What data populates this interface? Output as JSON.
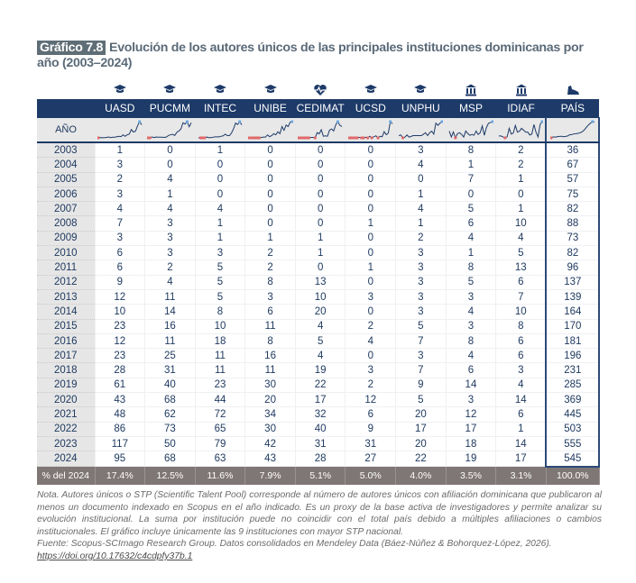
{
  "title": {
    "badge": "Gráfico 7.8",
    "text": "Evolución de los autores únicos de las principales instituciones dominicanas por año (2003–2024)"
  },
  "colors": {
    "header": "#1d3a68",
    "footer_row": "#7f7775",
    "min_marker": "#e06a6a",
    "max_marker": "#6aa8e0"
  },
  "year_header": "AÑO",
  "columns": [
    {
      "label": "UASD",
      "icon": "graduation-cap-icon"
    },
    {
      "label": "PUCMM",
      "icon": "graduation-cap-icon"
    },
    {
      "label": "INTEC",
      "icon": "graduation-cap-icon"
    },
    {
      "label": "UNIBE",
      "icon": "graduation-cap-icon"
    },
    {
      "label": "CEDIMAT",
      "icon": "heart-pulse-icon"
    },
    {
      "label": "UCSD",
      "icon": "graduation-cap-icon"
    },
    {
      "label": "UNPHU",
      "icon": "graduation-cap-icon"
    },
    {
      "label": "MSP",
      "icon": "institution-building-icon"
    },
    {
      "label": "IDIAF",
      "icon": "institution-building-icon"
    },
    {
      "label": "PAÍS",
      "icon": "country-map-icon"
    }
  ],
  "rows": [
    {
      "year": "2003",
      "values": [
        1,
        0,
        1,
        0,
        0,
        0,
        3,
        8,
        2,
        36
      ]
    },
    {
      "year": "2004",
      "values": [
        3,
        0,
        0,
        0,
        0,
        0,
        4,
        1,
        2,
        67
      ]
    },
    {
      "year": "2005",
      "values": [
        2,
        4,
        0,
        0,
        0,
        0,
        0,
        7,
        1,
        57
      ]
    },
    {
      "year": "2006",
      "values": [
        3,
        1,
        0,
        0,
        0,
        0,
        1,
        0,
        0,
        75
      ]
    },
    {
      "year": "2007",
      "values": [
        4,
        4,
        4,
        0,
        0,
        0,
        4,
        5,
        1,
        82
      ]
    },
    {
      "year": "2008",
      "values": [
        7,
        3,
        1,
        0,
        0,
        1,
        1,
        6,
        10,
        88
      ]
    },
    {
      "year": "2009",
      "values": [
        3,
        3,
        1,
        1,
        1,
        0,
        2,
        4,
        4,
        73
      ]
    },
    {
      "year": "2010",
      "values": [
        6,
        3,
        3,
        2,
        1,
        0,
        3,
        1,
        5,
        82
      ]
    },
    {
      "year": "2011",
      "values": [
        6,
        2,
        5,
        2,
        0,
        1,
        3,
        8,
        13,
        96
      ]
    },
    {
      "year": "2012",
      "values": [
        9,
        4,
        5,
        8,
        13,
        0,
        3,
        5,
        6,
        137
      ]
    },
    {
      "year": "2013",
      "values": [
        12,
        11,
        5,
        3,
        10,
        3,
        3,
        3,
        7,
        139
      ]
    },
    {
      "year": "2014",
      "values": [
        10,
        14,
        8,
        6,
        20,
        0,
        3,
        4,
        10,
        164
      ]
    },
    {
      "year": "2015",
      "values": [
        23,
        16,
        10,
        11,
        4,
        2,
        5,
        3,
        8,
        170
      ]
    },
    {
      "year": "2016",
      "values": [
        12,
        11,
        18,
        8,
        5,
        4,
        7,
        8,
        6,
        181
      ]
    },
    {
      "year": "2017",
      "values": [
        23,
        25,
        11,
        16,
        4,
        0,
        3,
        4,
        6,
        196
      ]
    },
    {
      "year": "2018",
      "values": [
        28,
        31,
        11,
        11,
        19,
        3,
        7,
        6,
        3,
        231
      ]
    },
    {
      "year": "2019",
      "values": [
        61,
        40,
        23,
        30,
        22,
        2,
        9,
        14,
        4,
        285
      ]
    },
    {
      "year": "2020",
      "values": [
        43,
        68,
        44,
        20,
        17,
        12,
        5,
        3,
        14,
        369
      ]
    },
    {
      "year": "2021",
      "values": [
        48,
        62,
        72,
        34,
        32,
        6,
        20,
        12,
        6,
        445
      ]
    },
    {
      "year": "2022",
      "values": [
        86,
        73,
        65,
        30,
        40,
        9,
        17,
        17,
        1,
        503
      ]
    },
    {
      "year": "2023",
      "values": [
        117,
        50,
        79,
        42,
        31,
        31,
        20,
        18,
        14,
        555
      ]
    },
    {
      "year": "2024",
      "values": [
        95,
        68,
        63,
        43,
        28,
        27,
        22,
        19,
        17,
        545
      ]
    }
  ],
  "share_row": {
    "label": "% del 2024",
    "values": [
      "17.4%",
      "12.5%",
      "11.6%",
      "7.9%",
      "5.1%",
      "5.0%",
      "4.0%",
      "3.5%",
      "3.1%",
      "100.0%"
    ]
  },
  "note": {
    "text": "Nota. Autores únicos o STP (Scientific Talent Pool) corresponde al número de autores únicos con afiliación dominicana que publicaron al menos un documento indexado en Scopus en el año indicado. Es un proxy de la base activa de investigadores y permite analizar su evolución institucional. La suma por institución puede no coincidir con el total país debido a múltiples afiliaciones o cambios institucionales. El gráfico incluye únicamente las 9 instituciones con mayor STP nacional.",
    "source": "Fuente: Scopus-SCImago Research Group. Datos consolidados en Mendeley Data (Báez-Núñez & Bohorquez-López, 2026).",
    "link": "https://doi.org/10.17632/c4cdpfy37b.1"
  }
}
